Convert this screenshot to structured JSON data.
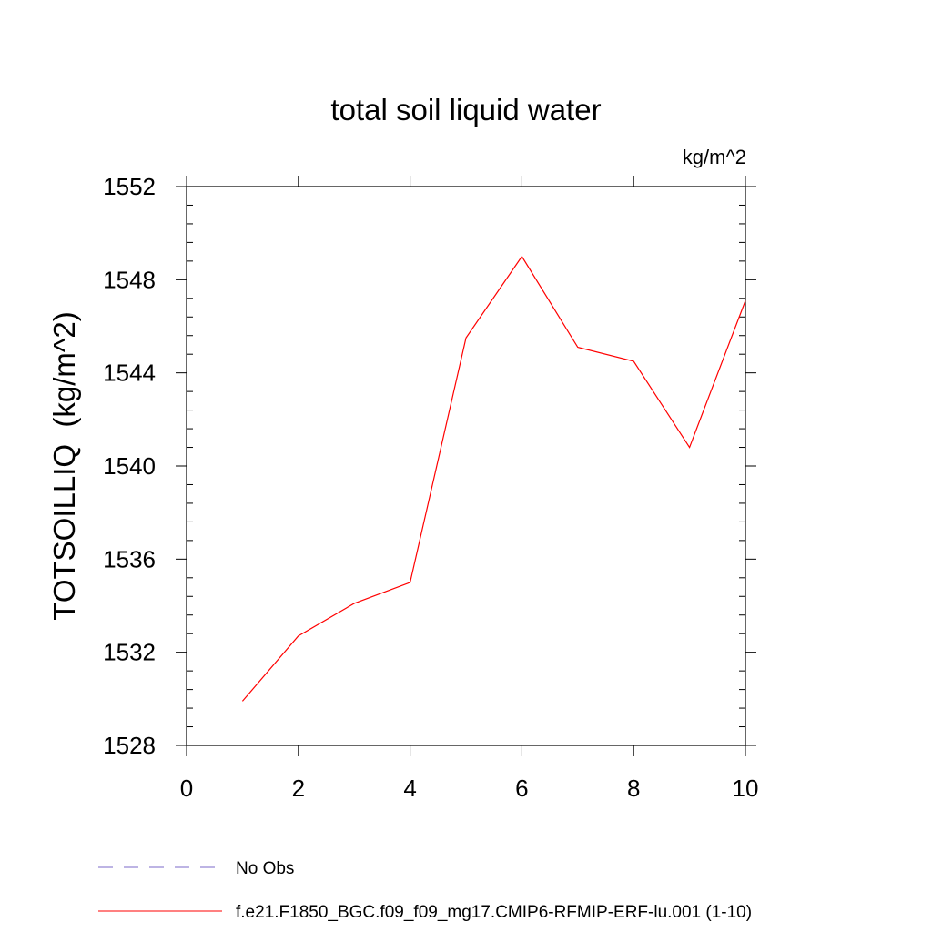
{
  "chart_data": {
    "type": "line",
    "title": "total soil liquid water",
    "units_label": "kg/m^2",
    "xlabel": "",
    "ylabel": "TOTSOILLIQ  (kg/m^2)",
    "xlim": [
      0,
      10
    ],
    "ylim": [
      1528,
      1552
    ],
    "x_ticks": [
      0,
      2,
      4,
      6,
      8,
      10
    ],
    "y_ticks": [
      1528,
      1532,
      1536,
      1540,
      1544,
      1548,
      1552
    ],
    "x_tick_labels": [
      "0",
      "2",
      "4",
      "6",
      "8",
      "10"
    ],
    "y_tick_labels": [
      "1528",
      "1532",
      "1536",
      "1540",
      "1544",
      "1548",
      "1552"
    ],
    "series": [
      {
        "name": "f.e21.F1850_BGC.f09_f09_mg17.CMIP6-RFMIP-ERF-lu.001 (1-10)",
        "color": "#ff0000",
        "x": [
          1,
          2,
          3,
          4,
          5,
          6,
          7,
          8,
          9,
          10
        ],
        "values": [
          1529.9,
          1532.7,
          1534.1,
          1535.0,
          1545.5,
          1549.0,
          1545.1,
          1544.5,
          1540.8,
          1547.1
        ]
      }
    ],
    "legend": [
      {
        "label": "No Obs",
        "color": "#7b68c8",
        "style": "dashed"
      },
      {
        "label": "f.e21.F1850_BGC.f09_f09_mg17.CMIP6-RFMIP-ERF-lu.001 (1-10)",
        "color": "#ff0000",
        "style": "solid"
      }
    ]
  }
}
